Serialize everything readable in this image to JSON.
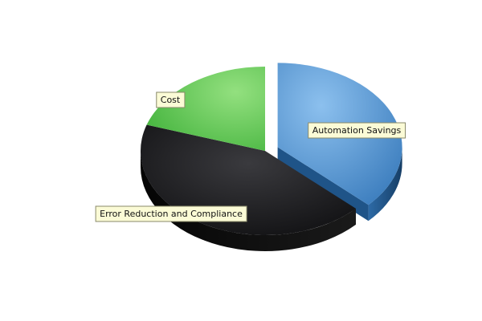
{
  "chart_data": {
    "type": "pie",
    "title": "",
    "style": "3d-exploded",
    "slices": [
      {
        "label": "Automation Savings",
        "value": 37,
        "color": "#5b9bd5"
      },
      {
        "label": "Error Reduction and Compliance",
        "value": 43,
        "color": "#1e1e22"
      },
      {
        "label": "Cost",
        "value": 20,
        "color": "#6fd35d"
      }
    ],
    "exploded": [
      "Automation Savings"
    ],
    "legend": "none"
  }
}
